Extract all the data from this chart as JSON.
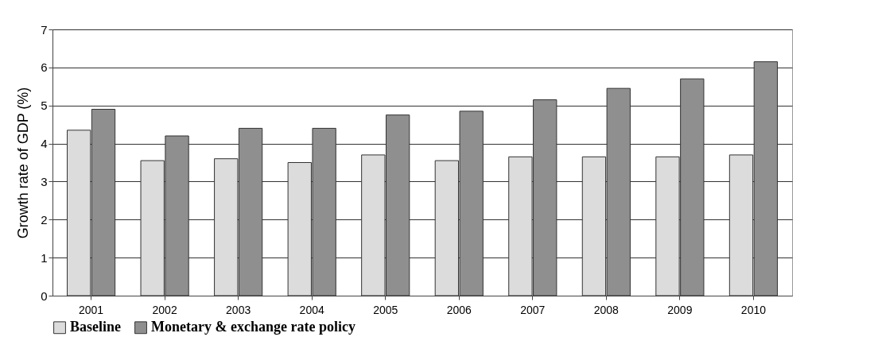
{
  "chart_data": {
    "type": "bar",
    "ylabel": "Growth rate of GDP (%)",
    "categories": [
      "2001",
      "2002",
      "2003",
      "2004",
      "2005",
      "2006",
      "2007",
      "2008",
      "2009",
      "2010"
    ],
    "series": [
      {
        "name": "Baseline",
        "color": "#dcdcdc",
        "values": [
          4.35,
          3.55,
          3.6,
          3.5,
          3.7,
          3.55,
          3.65,
          3.65,
          3.65,
          3.7
        ]
      },
      {
        "name": "Monetary & exchange rate policy",
        "color": "#8f8f8f",
        "values": [
          4.9,
          4.2,
          4.4,
          4.4,
          4.75,
          4.85,
          5.15,
          5.45,
          5.7,
          6.15
        ]
      }
    ],
    "ylim": [
      0,
      7
    ],
    "yticks": [
      0,
      1,
      2,
      3,
      4,
      5,
      6,
      7
    ],
    "grid": "y",
    "legend": "bottom"
  }
}
